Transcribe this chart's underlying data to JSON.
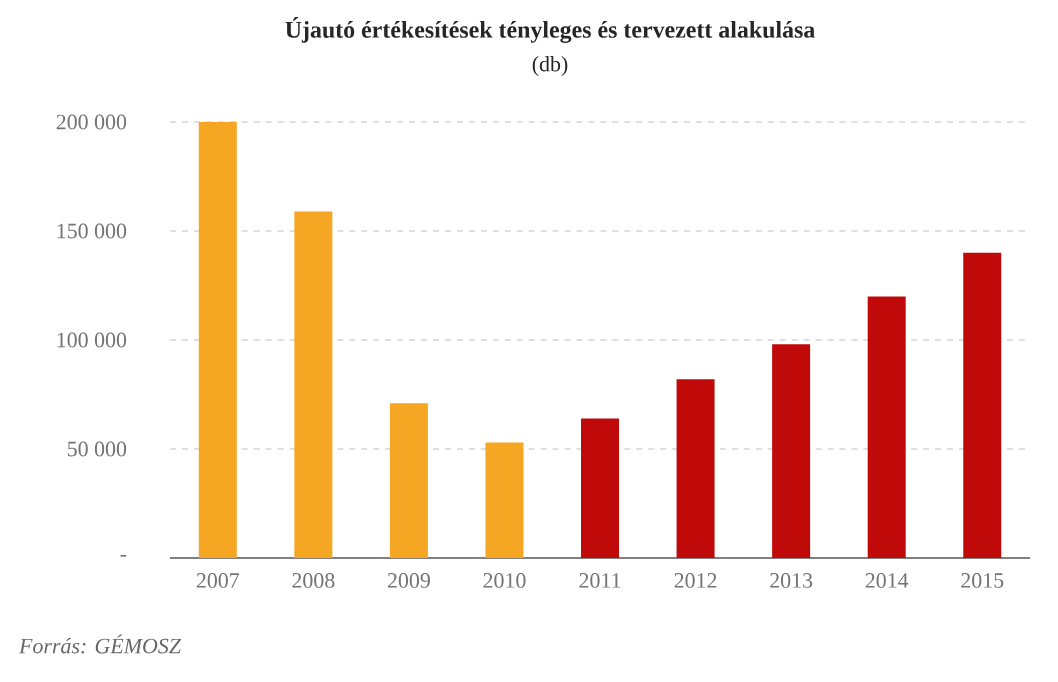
{
  "chart_data": {
    "type": "bar",
    "title": "Újautó értékesítések tényleges és tervezett alakulása",
    "subtitle": "(db)",
    "categories": [
      "2007",
      "2008",
      "2009",
      "2010",
      "2011",
      "2012",
      "2013",
      "2014",
      "2015"
    ],
    "values": [
      200000,
      159000,
      71000,
      53000,
      64000,
      82000,
      98000,
      120000,
      140000
    ],
    "colors": [
      "#f5a623",
      "#f5a623",
      "#f5a623",
      "#f5a623",
      "#c00a0a",
      "#c00a0a",
      "#c00a0a",
      "#c00a0a",
      "#c00a0a"
    ],
    "ylim": [
      0,
      200000
    ],
    "yticks": [
      {
        "value": 0,
        "label": "-"
      },
      {
        "value": 50000,
        "label": "50 000"
      },
      {
        "value": 100000,
        "label": "100 000"
      },
      {
        "value": 150000,
        "label": "150 000"
      },
      {
        "value": 200000,
        "label": "200 000"
      }
    ],
    "grid": "y",
    "annotations": [
      "Forrás: GÉMOSZ"
    ]
  }
}
